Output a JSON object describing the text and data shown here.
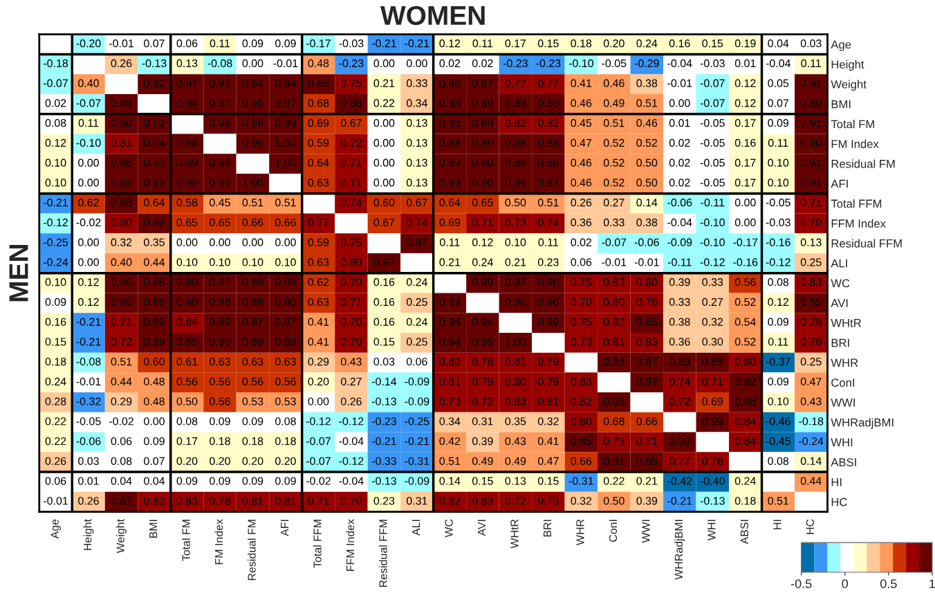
{
  "chart_data": {
    "type": "heatmap",
    "title": "WOMEN",
    "ylabel": "MEN",
    "categories": [
      "Age",
      "Height",
      "Weight",
      "BMI",
      "Total FM",
      "FM Index",
      "Residual FM",
      "AFI",
      "Total FFM",
      "FFM Index",
      "Residual FFM",
      "ALI",
      "WC",
      "AVI",
      "WHtR",
      "BRI",
      "WHR",
      "ConI",
      "WWI",
      "WHRadjBMI",
      "WHI",
      "ABSI",
      "HI",
      "HC"
    ],
    "y_categories": [
      "Age",
      "Height",
      "Weight",
      "BMI",
      "Total FM",
      "FM Index",
      "Residual FM",
      "AFI",
      "Total FFM",
      "FFM Index",
      "Residual FFM",
      "ALI",
      "WC",
      "AVI",
      "WHtR",
      "BRI",
      "WHR",
      "ConI",
      "WWI",
      "WHRadjBMI",
      "WHI",
      "ABSI",
      "HI",
      "HC"
    ],
    "cells": [
      [
        null,
        -0.2,
        -0.01,
        0.07,
        0.06,
        0.11,
        0.09,
        0.09,
        -0.17,
        -0.03,
        -0.21,
        -0.21,
        0.12,
        0.11,
        0.17,
        0.15,
        0.18,
        0.2,
        0.24,
        0.16,
        0.15,
        0.19,
        0.04,
        0.03
      ],
      [
        -0.18,
        null,
        0.26,
        -0.13,
        0.13,
        -0.08,
        0.0,
        -0.01,
        0.48,
        -0.23,
        0.0,
        0.0,
        0.02,
        0.02,
        -0.23,
        -0.23,
        -0.1,
        -0.05,
        -0.29,
        -0.04,
        -0.03,
        0.01,
        -0.04,
        0.11
      ],
      [
        -0.07,
        0.4,
        null,
        0.92,
        0.97,
        0.91,
        0.94,
        0.94,
        0.85,
        0.75,
        0.21,
        0.33,
        0.86,
        0.87,
        0.77,
        0.77,
        0.41,
        0.46,
        0.38,
        -0.01,
        -0.07,
        0.12,
        0.05,
        0.91
      ],
      [
        0.02,
        -0.07,
        0.88,
        null,
        0.94,
        0.97,
        0.96,
        0.97,
        0.68,
        0.86,
        0.22,
        0.34,
        0.88,
        0.89,
        0.89,
        0.89,
        0.46,
        0.49,
        0.51,
        0.0,
        -0.07,
        0.12,
        0.07,
        0.89
      ],
      [
        0.08,
        0.11,
        0.9,
        0.92,
        null,
        0.98,
        0.99,
        0.99,
        0.69,
        0.67,
        0.0,
        0.13,
        0.88,
        0.89,
        0.82,
        0.82,
        0.45,
        0.51,
        0.46,
        0.01,
        -0.05,
        0.17,
        0.09,
        0.91
      ],
      [
        0.12,
        -0.1,
        0.81,
        0.94,
        0.98,
        null,
        0.99,
        1.0,
        0.59,
        0.72,
        0.0,
        0.13,
        0.88,
        0.89,
        0.88,
        0.88,
        0.47,
        0.52,
        0.52,
        0.02,
        -0.05,
        0.16,
        0.11,
        0.9
      ],
      [
        0.1,
        0.0,
        0.86,
        0.93,
        0.99,
        0.99,
        null,
        1.0,
        0.64,
        0.71,
        0.0,
        0.13,
        0.89,
        0.9,
        0.86,
        0.86,
        0.46,
        0.52,
        0.5,
        0.02,
        -0.05,
        0.17,
        0.1,
        0.91
      ],
      [
        0.1,
        0.0,
        0.86,
        0.93,
        0.99,
        0.99,
        1.0,
        null,
        0.63,
        0.71,
        0.0,
        0.13,
        0.89,
        0.9,
        0.86,
        0.87,
        0.46,
        0.52,
        0.5,
        0.02,
        -0.05,
        0.17,
        0.1,
        0.91
      ],
      [
        -0.21,
        0.62,
        0.88,
        0.64,
        0.58,
        0.45,
        0.51,
        0.51,
        null,
        0.74,
        0.6,
        0.67,
        0.64,
        0.65,
        0.5,
        0.51,
        0.26,
        0.27,
        0.14,
        -0.06,
        -0.11,
        0.0,
        -0.05,
        0.71
      ],
      [
        -0.12,
        -0.02,
        0.8,
        0.88,
        0.65,
        0.65,
        0.66,
        0.66,
        0.77,
        null,
        0.67,
        0.74,
        0.69,
        0.71,
        0.73,
        0.74,
        0.36,
        0.33,
        0.38,
        -0.04,
        -0.1,
        0.0,
        -0.03,
        0.7
      ],
      [
        -0.25,
        0.0,
        0.32,
        0.35,
        0.0,
        0.0,
        0.0,
        0.0,
        0.59,
        0.75,
        null,
        0.97,
        0.11,
        0.12,
        0.1,
        0.11,
        0.02,
        -0.07,
        -0.06,
        -0.09,
        -0.1,
        -0.17,
        -0.16,
        0.13
      ],
      [
        -0.24,
        0.0,
        0.4,
        0.44,
        0.1,
        0.1,
        0.1,
        0.1,
        0.63,
        0.8,
        0.97,
        null,
        0.21,
        0.24,
        0.21,
        0.23,
        0.06,
        -0.01,
        -0.01,
        -0.11,
        -0.12,
        -0.16,
        -0.12,
        0.25
      ],
      [
        0.1,
        0.12,
        0.86,
        0.88,
        0.9,
        0.87,
        0.89,
        0.89,
        0.62,
        0.7,
        0.16,
        0.24,
        null,
        0.99,
        0.97,
        0.96,
        0.75,
        0.83,
        0.8,
        0.39,
        0.33,
        0.56,
        0.08,
        0.83
      ],
      [
        0.09,
        0.12,
        0.86,
        0.88,
        0.9,
        0.88,
        0.89,
        0.9,
        0.63,
        0.71,
        0.16,
        0.25,
        0.99,
        null,
        0.96,
        0.96,
        0.7,
        0.8,
        0.76,
        0.33,
        0.27,
        0.52,
        0.12,
        0.85
      ],
      [
        0.16,
        -0.21,
        0.71,
        0.89,
        0.84,
        0.89,
        0.87,
        0.87,
        0.41,
        0.7,
        0.16,
        0.24,
        0.94,
        0.94,
        null,
        0.99,
        0.75,
        0.82,
        0.85,
        0.38,
        0.32,
        0.54,
        0.09,
        0.78
      ],
      [
        0.15,
        -0.21,
        0.72,
        0.89,
        0.85,
        0.9,
        0.88,
        0.88,
        0.41,
        0.7,
        0.15,
        0.25,
        0.94,
        0.95,
        1.0,
        null,
        0.73,
        0.81,
        0.83,
        0.36,
        0.3,
        0.52,
        0.11,
        0.78
      ],
      [
        0.18,
        -0.08,
        0.51,
        0.6,
        0.61,
        0.63,
        0.63,
        0.63,
        0.29,
        0.43,
        0.03,
        0.06,
        0.8,
        0.78,
        0.81,
        0.79,
        null,
        0.88,
        0.87,
        0.89,
        0.85,
        0.8,
        -0.37,
        0.25
      ],
      [
        0.24,
        -0.01,
        0.44,
        0.48,
        0.56,
        0.56,
        0.56,
        0.56,
        0.2,
        0.27,
        -0.14,
        -0.09,
        0.81,
        0.79,
        0.8,
        0.79,
        0.83,
        null,
        0.97,
        0.74,
        0.71,
        0.92,
        0.09,
        0.47
      ],
      [
        0.28,
        -0.32,
        0.29,
        0.48,
        0.5,
        0.56,
        0.53,
        0.53,
        0.0,
        0.26,
        -0.13,
        -0.09,
        0.73,
        0.72,
        0.83,
        0.81,
        0.82,
        0.95,
        null,
        0.72,
        0.69,
        0.88,
        0.1,
        0.43
      ],
      [
        0.22,
        -0.05,
        -0.02,
        0.0,
        0.08,
        0.09,
        0.09,
        0.08,
        -0.12,
        -0.12,
        -0.23,
        -0.25,
        0.34,
        0.31,
        0.35,
        0.32,
        0.8,
        0.68,
        0.66,
        null,
        0.99,
        0.84,
        -0.46,
        -0.18
      ],
      [
        0.22,
        -0.06,
        0.06,
        0.09,
        0.17,
        0.18,
        0.18,
        0.18,
        -0.07,
        -0.04,
        -0.21,
        -0.21,
        0.42,
        0.39,
        0.43,
        0.41,
        0.85,
        0.73,
        0.71,
        0.99,
        null,
        0.84,
        -0.45,
        -0.24
      ],
      [
        0.26,
        0.03,
        0.08,
        0.07,
        0.2,
        0.2,
        0.2,
        0.2,
        -0.07,
        -0.12,
        -0.33,
        -0.31,
        0.51,
        0.49,
        0.49,
        0.47,
        0.66,
        0.91,
        0.85,
        0.77,
        0.78,
        null,
        0.08,
        0.14
      ],
      [
        0.06,
        0.01,
        0.04,
        0.04,
        0.09,
        0.09,
        0.09,
        0.09,
        -0.02,
        -0.04,
        -0.13,
        -0.09,
        0.14,
        0.15,
        0.13,
        0.15,
        -0.31,
        0.22,
        0.21,
        -0.42,
        -0.4,
        0.24,
        null,
        0.44
      ],
      [
        -0.01,
        0.26,
        0.87,
        0.82,
        0.83,
        0.78,
        0.81,
        0.81,
        0.71,
        0.7,
        0.23,
        0.31,
        0.82,
        0.83,
        0.72,
        0.73,
        0.32,
        0.5,
        0.39,
        -0.21,
        -0.13,
        0.18,
        0.51,
        null
      ]
    ],
    "cell_labels": [
      [
        null,
        "-0.20",
        "-0.01",
        "0.07",
        "0.06",
        "0.11",
        "0.09",
        "0.09",
        "-0.17",
        "-0.03",
        "-0.21",
        "-0.21",
        "0.12",
        "0.11",
        "0.17",
        "0.15",
        "0.18",
        "0.20",
        "0.24",
        "0.16",
        "0.15",
        "0.19",
        "0.04",
        "0.03"
      ],
      [
        "-0.18",
        null,
        "0.26",
        "-0.13",
        "0.13",
        "-0.08",
        "0.00",
        "-0.01",
        "0.48",
        "-0.23",
        "0.00",
        "0.00",
        "0.02",
        "0.02",
        "-0.23",
        "-0.23",
        "-0.10",
        "-0.05",
        "-0.29",
        "-0.04",
        "-0.03",
        "0.01",
        "-0.04",
        "0.11"
      ],
      [
        "-0.07",
        "0.40",
        null,
        "0.92",
        "0.97",
        "0.91",
        "0.94",
        "0.94",
        "0.85",
        "0.75",
        "0.21",
        "0.33",
        "0.86",
        "0.87",
        "0.77",
        "0.77",
        "0.41",
        "0.46",
        "0.38",
        "-0.01",
        "-0.07",
        "0.12",
        "0.05",
        "0.91"
      ],
      [
        "0.02",
        "-0.07",
        "0.88",
        null,
        "0.94",
        "0.97",
        "0.96",
        "0.97",
        "0.68",
        "0.86",
        "0.22",
        "0.34",
        "0.88",
        "0.89",
        "0.89",
        "0.89",
        "0.46",
        "0.49",
        "0.51",
        "0.00",
        "-0.07",
        "0.12",
        "0.07",
        "0.89"
      ],
      [
        "0.08",
        "0.11",
        "0.90",
        "0.92",
        null,
        "0.98",
        "0.99",
        "0.99",
        "0.69",
        "0.67",
        "0.00",
        "0.13",
        "0.88",
        "0.89",
        "0.82",
        "0.82",
        "0.45",
        "0.51",
        "0.46",
        "0.01",
        "-0.05",
        "0.17",
        "0.09",
        "0.91"
      ],
      [
        "0.12",
        "-0.10",
        "0.81",
        "0.94",
        "0.98",
        null,
        "0.99",
        "1.00",
        "0.59",
        "0.72",
        "0.00",
        "0.13",
        "0.88",
        "0.89",
        "0.88",
        "0.88",
        "0.47",
        "0.52",
        "0.52",
        "0.02",
        "-0.05",
        "0.16",
        "0.11",
        "0.90"
      ],
      [
        "0.10",
        "0.00",
        "0.86",
        "0.93",
        "0.99",
        "0.99",
        null,
        "1.00",
        "0.64",
        "0.71",
        "0.00",
        "0.13",
        "0.89",
        "0.90",
        "0.86",
        "0.86",
        "0.46",
        "0.52",
        "0.50",
        "0.02",
        "-0.05",
        "0.17",
        "0.10",
        "0.91"
      ],
      [
        "0.10",
        "0.00",
        "0.86",
        "0.93",
        "0.99",
        "0.99",
        "1.00",
        null,
        "0.63",
        "0.71",
        "0.00",
        "0.13",
        "0.89",
        "0.90",
        "0.86",
        "0.87",
        "0.46",
        "0.52",
        "0.50",
        "0.02",
        "-0.05",
        "0.17",
        "0.10",
        "0.91"
      ],
      [
        "-0.21",
        "0.62",
        "0.88",
        "0.64",
        "0.58",
        "0.45",
        "0.51",
        "0.51",
        null,
        "0.74",
        "0.60",
        "0.67",
        "0.64",
        "0.65",
        "0.50",
        "0.51",
        "0.26",
        "0.27",
        "0.14",
        "-0.06",
        "-0.11",
        "0.00",
        "-0.05",
        "0.71"
      ],
      [
        "-0.12",
        "-0.02",
        "0.80",
        "0.88",
        "0.65",
        "0.65",
        "0.66",
        "0.66",
        "0.77",
        null,
        "0.67",
        "0.74",
        "0.69",
        "0.71",
        "0.73",
        "0.74",
        "0.36",
        "0.33",
        "0.38",
        "-0.04",
        "-0.10",
        "0.00",
        "-0.03",
        "0.70"
      ],
      [
        "-0.25",
        "0.00",
        "0.32",
        "0.35",
        "0.00",
        "0.00",
        "0.00",
        "0.00",
        "0.59",
        "0.75",
        null,
        "0.97",
        "0.11",
        "0.12",
        "0.10",
        "0.11",
        "0.02",
        "-0.07",
        "-0.06",
        "-0.09",
        "-0.10",
        "-0.17",
        "-0.16",
        "0.13"
      ],
      [
        "-0.24",
        "0.00",
        "0.40",
        "0.44",
        "0.10",
        "0.10",
        "0.10",
        "0.10",
        "0.63",
        "0.80",
        "0.97",
        null,
        "0.21",
        "0.24",
        "0.21",
        "0.23",
        "0.06",
        "-0.01",
        "-0.01",
        "-0.11",
        "-0.12",
        "-0.16",
        "-0.12",
        "0.25"
      ],
      [
        "0.10",
        "0.12",
        "0.86",
        "0.88",
        "0.90",
        "0.87",
        "0.89",
        "0.89",
        "0.62",
        "0.70",
        "0.16",
        "0.24",
        null,
        "0.99",
        "0.97",
        "0.96",
        "0.75",
        "0.83",
        "0.80",
        "0.39",
        "0.33",
        "0.56",
        "0.08",
        "0.83"
      ],
      [
        "0.09",
        "0.12",
        "0.86",
        "0.88",
        "0.90",
        "0.88",
        "0.89",
        "0.90",
        "0.63",
        "0.71",
        "0.16",
        "0.25",
        "0.99",
        null,
        "0.96",
        "0.96",
        "0.70",
        "0.80",
        "0.76",
        "0.33",
        "0.27",
        "0.52",
        "0.12",
        "0.85"
      ],
      [
        "0.16",
        "-0.21",
        "0.71",
        "0.89",
        "0.84",
        "0.89",
        "0.87",
        "0.87",
        "0.41",
        "0.70",
        "0.16",
        "0.24",
        "0.94",
        "0.94",
        null,
        "0.99",
        "0.75",
        "0.82",
        "0.85",
        "0.38",
        "0.32",
        "0.54",
        "0.09",
        "0.78"
      ],
      [
        "0.15",
        "-0.21",
        "0.72",
        "0.89",
        "0.85",
        "0.90",
        "0.88",
        "0.88",
        "0.41",
        "0.70",
        "0.15",
        "0.25",
        "0.94",
        "0.95",
        "1.00",
        null,
        "0.73",
        "0.81",
        "0.83",
        "0.36",
        "0.30",
        "0.52",
        "0.11",
        "0.78"
      ],
      [
        "0.18",
        "-0.08",
        "0.51",
        "0.60",
        "0.61",
        "0.63",
        "0.63",
        "0.63",
        "0.29",
        "0.43",
        "0.03",
        "0.06",
        "0.80",
        "0.78",
        "0.81",
        "0.79",
        null,
        "0.88",
        "0.87",
        "0.89",
        "0.85",
        "0.80",
        "-0.37",
        "0.25"
      ],
      [
        "0.24",
        "-0.01",
        "0.44",
        "0.48",
        "0.56",
        "0.56",
        "0.56",
        "0.56",
        "0.20",
        "0.27",
        "-0.14",
        "-0.09",
        "0.81",
        "0.79",
        "0.80",
        "0.79",
        "0.83",
        null,
        "0.97",
        "0.74",
        "0.71",
        "0.92",
        "0.09",
        "0.47"
      ],
      [
        "0.28",
        "-0.32",
        "0.29",
        "0.48",
        "0.50",
        "0.56",
        "0.53",
        "0.53",
        "0.00",
        "0.26",
        "-0.13",
        "-0.09",
        "0.73",
        "0.72",
        "0.83",
        "0.81",
        "0.82",
        "0.95",
        null,
        "0.72",
        "0.69",
        "0.88",
        "0.10",
        "0.43"
      ],
      [
        "0.22",
        "-0.05",
        "-0.02",
        "0.00",
        "0.08",
        "0.09",
        "0.09",
        "0.08",
        "-0.12",
        "-0.12",
        "-0.23",
        "-0.25",
        "0.34",
        "0.31",
        "0.35",
        "0.32",
        "0.80",
        "0.68",
        "0.66",
        null,
        "0.99",
        "0.84",
        "-0.46",
        "-0.18"
      ],
      [
        "0.22",
        "-0.06",
        "0.06",
        "0.09",
        "0.17",
        "0.18",
        "0.18",
        "0.18",
        "-0.07",
        "-0.04",
        "-0.21",
        "-0.21",
        "0.42",
        "0.39",
        "0.43",
        "0.41",
        "0.85",
        "0.73",
        "0.71",
        "0.99",
        null,
        "0.84",
        "-0.45",
        "-0.24"
      ],
      [
        "0.26",
        "0.03",
        "0.08",
        "0.07",
        "0.20",
        "0.20",
        "0.20",
        "0.20",
        "-0.07",
        "-0.12",
        "-0.33",
        "-0.31",
        "0.51",
        "0.49",
        "0.49",
        "0.47",
        "0.66",
        "0.91",
        "0.85",
        "0.77",
        "0.78",
        null,
        "0.08",
        "0.14"
      ],
      [
        "0.06",
        "0.01",
        "0.04",
        "0.04",
        "0.09",
        "0.09",
        "0.09",
        "0.09",
        "-0.02",
        "-0.04",
        "-0.13",
        "-0.09",
        "0.14",
        "0.15",
        "0.13",
        "0.15",
        "-0.31",
        "0.22",
        "0.21",
        "-0.42",
        "-0.40",
        "0.24",
        null,
        "0.44"
      ],
      [
        "-0.01",
        "0.26",
        "0.87",
        "0.82",
        "0.83",
        "0.78",
        "0.81",
        "0.81",
        "0.71",
        "0.70",
        "0.23",
        "0.31",
        "0.82",
        "0.83",
        "0.72",
        "0.73",
        "0.32",
        "0.50",
        "0.39",
        "-0.21",
        "-0.13",
        "0.18",
        "0.51",
        null
      ]
    ],
    "colors": [
      "#006eaa",
      "#3a96f5",
      "#9cfcff",
      "#ffffff",
      "#fffcc8",
      "#ffc999",
      "#ff9a5c",
      "#cc3300",
      "#990000",
      "#660000"
    ],
    "clim": [
      -0.5,
      1
    ],
    "cticks": [
      -0.5,
      0,
      0.5,
      1
    ]
  }
}
